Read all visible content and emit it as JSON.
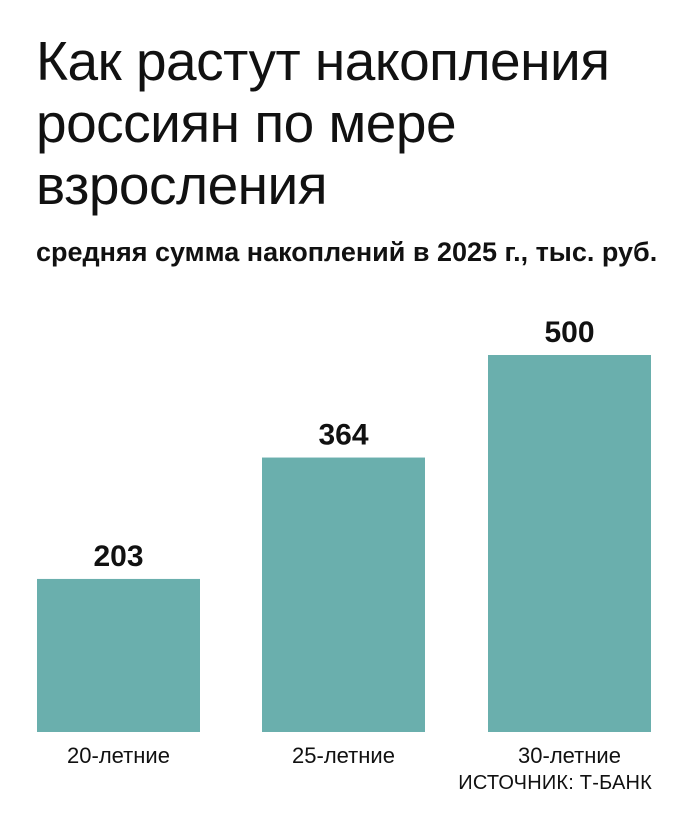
{
  "chart_data": {
    "type": "bar",
    "title": "Как растут накопления россиян по мере взросления",
    "subtitle": "средняя сумма накоплений в 2025 г., тыс. руб.",
    "categories": [
      "20-летние",
      "25-летние",
      "30-летние"
    ],
    "values": [
      203,
      364,
      500
    ],
    "xlabel": "",
    "ylabel": "",
    "ylim": [
      0,
      500
    ],
    "grid": false,
    "legend": "none",
    "bar_color": "#6aafad",
    "source": "ИСТОЧНИК: Т-БАНК"
  }
}
